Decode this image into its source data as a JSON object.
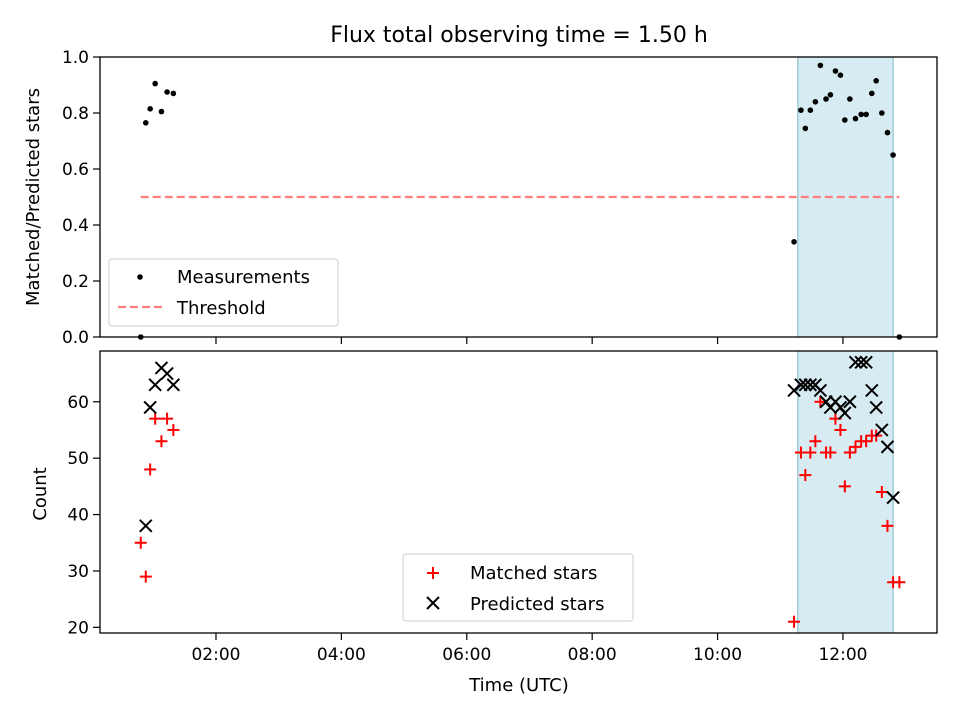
{
  "title": "Flux total observing time = 1.50 h",
  "xlabel": "Time (UTC)",
  "x_ticks": [
    "02:00",
    "04:00",
    "06:00",
    "08:00",
    "10:00",
    "12:00"
  ],
  "colors": {
    "highlight": "#add8e6",
    "threshold": "#ff7f7f",
    "matched": "#ff0000",
    "predicted": "#000000",
    "measurement": "#000000"
  },
  "chart_data": [
    {
      "type": "scatter",
      "panel": "top",
      "ylabel": "Matched/Predicted stars",
      "ylim": [
        0,
        1.0
      ],
      "xlim_hours": [
        0.15,
        13.5
      ],
      "yticks": [
        "0.0",
        "0.2",
        "0.4",
        "0.6",
        "0.8",
        "1.0"
      ],
      "highlight_span_hours": [
        11.28,
        12.8
      ],
      "legend": {
        "placement": "lower-left",
        "entries": [
          "Measurements",
          "Threshold"
        ]
      },
      "series": [
        {
          "name": "Measurements",
          "marker": "dot",
          "points": [
            [
              0.8,
              0.0
            ],
            [
              0.88,
              0.765
            ],
            [
              0.95,
              0.815
            ],
            [
              1.03,
              0.905
            ],
            [
              1.13,
              0.805
            ],
            [
              1.22,
              0.875
            ],
            [
              1.32,
              0.87
            ],
            [
              11.22,
              0.34
            ],
            [
              11.33,
              0.81
            ],
            [
              11.4,
              0.745
            ],
            [
              11.48,
              0.81
            ],
            [
              11.56,
              0.84
            ],
            [
              11.64,
              0.97
            ],
            [
              11.73,
              0.85
            ],
            [
              11.8,
              0.865
            ],
            [
              11.88,
              0.95
            ],
            [
              11.96,
              0.935
            ],
            [
              12.03,
              0.775
            ],
            [
              12.11,
              0.85
            ],
            [
              12.2,
              0.78
            ],
            [
              12.29,
              0.795
            ],
            [
              12.37,
              0.795
            ],
            [
              12.46,
              0.87
            ],
            [
              12.53,
              0.915
            ],
            [
              12.62,
              0.8
            ],
            [
              12.71,
              0.73
            ],
            [
              12.8,
              0.65
            ],
            [
              12.9,
              0.0
            ]
          ]
        },
        {
          "name": "Threshold",
          "style": "dashed",
          "points": [
            [
              0.8,
              0.5
            ],
            [
              12.9,
              0.5
            ]
          ]
        }
      ]
    },
    {
      "type": "scatter",
      "panel": "bottom",
      "ylabel": "Count",
      "ylim": [
        19,
        69
      ],
      "xlim_hours": [
        0.15,
        13.5
      ],
      "yticks": [
        "20",
        "30",
        "40",
        "50",
        "60"
      ],
      "highlight_span_hours": [
        11.28,
        12.8
      ],
      "legend": {
        "placement": "lower-center",
        "entries": [
          "Matched stars",
          "Predicted stars"
        ]
      },
      "series": [
        {
          "name": "Matched stars",
          "marker": "plus",
          "points": [
            [
              0.8,
              35
            ],
            [
              0.88,
              29
            ],
            [
              0.95,
              48
            ],
            [
              1.03,
              57
            ],
            [
              1.13,
              53
            ],
            [
              1.22,
              57
            ],
            [
              1.32,
              55
            ],
            [
              11.22,
              21
            ],
            [
              11.33,
              51
            ],
            [
              11.4,
              47
            ],
            [
              11.48,
              51
            ],
            [
              11.56,
              53
            ],
            [
              11.64,
              60
            ],
            [
              11.73,
              51
            ],
            [
              11.8,
              51
            ],
            [
              11.88,
              57
            ],
            [
              11.96,
              55
            ],
            [
              12.03,
              45
            ],
            [
              12.11,
              51
            ],
            [
              12.2,
              52
            ],
            [
              12.29,
              53
            ],
            [
              12.37,
              53
            ],
            [
              12.46,
              54
            ],
            [
              12.53,
              54
            ],
            [
              12.62,
              44
            ],
            [
              12.71,
              38
            ],
            [
              12.8,
              28
            ],
            [
              12.9,
              28
            ]
          ]
        },
        {
          "name": "Predicted stars",
          "marker": "x",
          "points": [
            [
              0.88,
              38
            ],
            [
              0.95,
              59
            ],
            [
              1.03,
              63
            ],
            [
              1.13,
              66
            ],
            [
              1.22,
              65
            ],
            [
              1.32,
              63
            ],
            [
              11.22,
              62
            ],
            [
              11.33,
              63
            ],
            [
              11.4,
              63
            ],
            [
              11.48,
              63
            ],
            [
              11.56,
              63
            ],
            [
              11.64,
              62
            ],
            [
              11.73,
              60
            ],
            [
              11.8,
              59
            ],
            [
              11.88,
              60
            ],
            [
              11.96,
              59
            ],
            [
              12.03,
              58
            ],
            [
              12.11,
              60
            ],
            [
              12.2,
              67
            ],
            [
              12.29,
              67
            ],
            [
              12.37,
              67
            ],
            [
              12.46,
              62
            ],
            [
              12.53,
              59
            ],
            [
              12.62,
              55
            ],
            [
              12.71,
              52
            ],
            [
              12.8,
              43
            ]
          ]
        }
      ]
    }
  ]
}
